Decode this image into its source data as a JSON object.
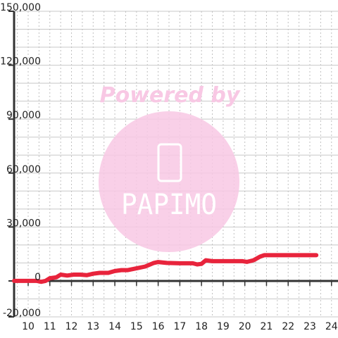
{
  "chart_data": {
    "type": "line",
    "title": "",
    "xlabel": "",
    "ylabel": "",
    "xlim": [
      9.35,
      24.3
    ],
    "ylim": [
      -20000,
      150000
    ],
    "x_ticks": [
      10,
      11,
      12,
      13,
      14,
      15,
      16,
      17,
      18,
      19,
      20,
      21,
      22,
      23,
      24
    ],
    "y_ticks": [
      -20000,
      0,
      30000,
      60000,
      90000,
      120000,
      150000
    ],
    "x_tick_labels": [
      "10",
      "11",
      "12",
      "13",
      "14",
      "15",
      "16",
      "17",
      "18",
      "19",
      "20",
      "21",
      "22",
      "23",
      "24"
    ],
    "y_tick_labels": [
      "-20,000",
      "0",
      "30,000",
      "60,000",
      "90,000",
      "120,000",
      "150,000"
    ],
    "grid": true,
    "series": [
      {
        "color": "#e8243c",
        "points": [
          [
            9.35,
            0
          ],
          [
            10.4,
            0
          ],
          [
            10.6,
            -500
          ],
          [
            10.8,
            0
          ],
          [
            11.0,
            1500
          ],
          [
            11.3,
            2000
          ],
          [
            11.5,
            3500
          ],
          [
            11.8,
            3000
          ],
          [
            12.1,
            3500
          ],
          [
            12.4,
            3500
          ],
          [
            12.7,
            3200
          ],
          [
            13.0,
            4000
          ],
          [
            13.3,
            4500
          ],
          [
            13.7,
            4500
          ],
          [
            14.0,
            5500
          ],
          [
            14.3,
            6000
          ],
          [
            14.6,
            6000
          ],
          [
            15.0,
            7000
          ],
          [
            15.4,
            8000
          ],
          [
            15.8,
            10000
          ],
          [
            16.0,
            10500
          ],
          [
            16.4,
            10000
          ],
          [
            17.0,
            9800
          ],
          [
            17.6,
            9800
          ],
          [
            17.8,
            9200
          ],
          [
            18.0,
            9500
          ],
          [
            18.2,
            11500
          ],
          [
            18.5,
            11000
          ],
          [
            19.0,
            11000
          ],
          [
            19.5,
            11000
          ],
          [
            19.9,
            11000
          ],
          [
            20.1,
            10600
          ],
          [
            20.4,
            11500
          ],
          [
            20.7,
            13500
          ],
          [
            20.9,
            14300
          ],
          [
            21.5,
            14300
          ],
          [
            22.0,
            14300
          ],
          [
            22.5,
            14300
          ],
          [
            23.0,
            14300
          ],
          [
            23.3,
            14300
          ]
        ]
      }
    ]
  },
  "watermark": {
    "text": "Powered by",
    "logo": "PAPIMO",
    "color": "#f8c8e4"
  }
}
